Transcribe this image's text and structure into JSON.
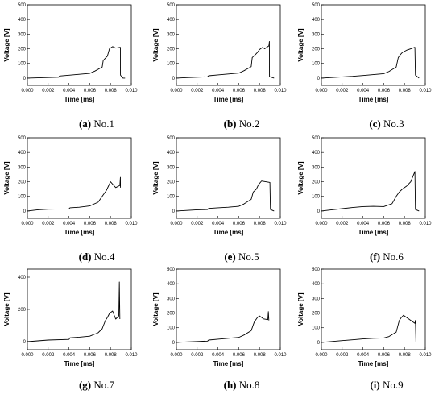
{
  "shared": {
    "xlabel": "Time [ms]",
    "ylabel": "Voltage [V]",
    "line_color": "#000000"
  },
  "chart_data": [
    {
      "type": "line",
      "caption_letter": "(a)",
      "caption_text": "No.1",
      "xlim": [
        0,
        0.01
      ],
      "ylim": [
        -50,
        500
      ],
      "xticks": [
        "0.000",
        "0.002",
        "0.004",
        "0.006",
        "0.008",
        "0.010"
      ],
      "yticks": [
        "0",
        "100",
        "200",
        "300",
        "400",
        "500"
      ],
      "x": [
        0,
        0.001,
        0.002,
        0.003,
        0.0031,
        0.004,
        0.005,
        0.006,
        0.0065,
        0.0072,
        0.0073,
        0.0075,
        0.0077,
        0.0079,
        0.0082,
        0.0085,
        0.00895,
        0.00896,
        0.0092,
        0.0094
      ],
      "y": [
        0,
        2,
        4,
        6,
        14,
        20,
        26,
        32,
        48,
        75,
        120,
        135,
        150,
        200,
        215,
        205,
        210,
        20,
        0,
        0
      ]
    },
    {
      "type": "line",
      "caption_letter": "(b)",
      "caption_text": "No.2",
      "xlim": [
        0,
        0.01
      ],
      "ylim": [
        -50,
        500
      ],
      "xticks": [
        "0.000",
        "0.002",
        "0.004",
        "0.006",
        "0.008",
        "0.010"
      ],
      "yticks": [
        "0",
        "100",
        "200",
        "300",
        "400",
        "500"
      ],
      "x": [
        0,
        0.001,
        0.002,
        0.003,
        0.0031,
        0.004,
        0.005,
        0.006,
        0.0065,
        0.0072,
        0.0073,
        0.0076,
        0.0078,
        0.008,
        0.0083,
        0.0085,
        0.0089,
        0.00895,
        0.00896,
        0.0094
      ],
      "y": [
        0,
        3,
        6,
        9,
        16,
        22,
        28,
        34,
        50,
        78,
        140,
        160,
        175,
        195,
        210,
        200,
        220,
        250,
        10,
        0
      ]
    },
    {
      "type": "line",
      "caption_letter": "(c)",
      "caption_text": "No.3",
      "xlim": [
        0,
        0.01
      ],
      "ylim": [
        -50,
        500
      ],
      "xticks": [
        "0.000",
        "0.002",
        "0.004",
        "0.006",
        "0.008",
        "0.010"
      ],
      "yticks": [
        "0",
        "100",
        "200",
        "300",
        "400",
        "500"
      ],
      "x": [
        0,
        0.001,
        0.002,
        0.003,
        0.004,
        0.005,
        0.006,
        0.0065,
        0.0072,
        0.0074,
        0.0076,
        0.0078,
        0.0082,
        0.0086,
        0.009,
        0.00905,
        0.0094
      ],
      "y": [
        0,
        4,
        8,
        12,
        18,
        24,
        30,
        45,
        75,
        140,
        160,
        175,
        190,
        200,
        210,
        20,
        0
      ]
    },
    {
      "type": "line",
      "caption_letter": "(d)",
      "caption_text": "No.4",
      "xlim": [
        0,
        0.01
      ],
      "ylim": [
        -50,
        500
      ],
      "xticks": [
        "0.000",
        "0.002",
        "0.004",
        "0.006",
        "0.008",
        "0.010"
      ],
      "yticks": [
        "0",
        "100",
        "200",
        "300",
        "400",
        "500"
      ],
      "x": [
        0,
        0.001,
        0.002,
        0.004,
        0.0041,
        0.005,
        0.006,
        0.0068,
        0.007,
        0.0073,
        0.0076,
        0.0078,
        0.008,
        0.0085,
        0.0089,
        0.00895,
        0.00896
      ],
      "y": [
        0,
        8,
        12,
        14,
        22,
        26,
        35,
        60,
        80,
        110,
        140,
        170,
        200,
        160,
        175,
        230,
        160
      ]
    },
    {
      "type": "line",
      "caption_letter": "(e)",
      "caption_text": "No.5",
      "xlim": [
        0,
        0.01
      ],
      "ylim": [
        -50,
        500
      ],
      "xticks": [
        "0.000",
        "0.002",
        "0.004",
        "0.006",
        "0.008",
        "0.010"
      ],
      "yticks": [
        "0",
        "100",
        "200",
        "300",
        "400",
        "500"
      ],
      "x": [
        0,
        0.001,
        0.002,
        0.003,
        0.0031,
        0.004,
        0.005,
        0.006,
        0.0065,
        0.0072,
        0.0074,
        0.0077,
        0.0079,
        0.0082,
        0.0086,
        0.009,
        0.00905,
        0.0094
      ],
      "y": [
        0,
        4,
        8,
        10,
        18,
        22,
        26,
        32,
        48,
        80,
        130,
        150,
        180,
        205,
        200,
        195,
        10,
        0
      ]
    },
    {
      "type": "line",
      "caption_letter": "(f)",
      "caption_text": "No.6",
      "xlim": [
        0,
        0.01
      ],
      "ylim": [
        -50,
        500
      ],
      "xticks": [
        "0.000",
        "0.002",
        "0.004",
        "0.006",
        "0.008",
        "0.010"
      ],
      "yticks": [
        "0",
        "100",
        "200",
        "300",
        "400",
        "500"
      ],
      "x": [
        0,
        0.001,
        0.002,
        0.003,
        0.004,
        0.005,
        0.006,
        0.0068,
        0.0072,
        0.0075,
        0.0078,
        0.0082,
        0.0086,
        0.009,
        0.00905,
        0.0094
      ],
      "y": [
        0,
        8,
        16,
        24,
        30,
        32,
        30,
        50,
        100,
        130,
        150,
        170,
        200,
        270,
        10,
        0
      ]
    },
    {
      "type": "line",
      "caption_letter": "(g)",
      "caption_text": "No.7",
      "xlim": [
        0,
        0.01
      ],
      "ylim": [
        -50,
        450
      ],
      "xticks": [
        "0.000",
        "0.002",
        "0.004",
        "0.006",
        "0.008",
        "0.010"
      ],
      "yticks": [
        "0",
        "200",
        "400"
      ],
      "x": [
        0,
        0.001,
        0.002,
        0.004,
        0.0041,
        0.005,
        0.006,
        0.0068,
        0.0072,
        0.0075,
        0.0077,
        0.0079,
        0.0082,
        0.0085,
        0.0088,
        0.00885,
        0.0089
      ],
      "y": [
        0,
        5,
        10,
        14,
        24,
        28,
        34,
        55,
        80,
        130,
        150,
        175,
        190,
        140,
        160,
        370,
        140
      ]
    },
    {
      "type": "line",
      "caption_letter": "(h)",
      "caption_text": "No.8",
      "xlim": [
        0,
        0.01
      ],
      "ylim": [
        -50,
        500
      ],
      "xticks": [
        "0.000",
        "0.002",
        "0.004",
        "0.006",
        "0.008",
        "0.010"
      ],
      "yticks": [
        "0",
        "100",
        "200",
        "300",
        "400",
        "500"
      ],
      "x": [
        0,
        0.001,
        0.002,
        0.003,
        0.0031,
        0.004,
        0.005,
        0.006,
        0.0065,
        0.0072,
        0.0075,
        0.0078,
        0.008,
        0.0084,
        0.0088,
        0.00885,
        0.0089
      ],
      "y": [
        0,
        3,
        6,
        9,
        16,
        22,
        28,
        34,
        50,
        80,
        140,
        170,
        180,
        160,
        155,
        210,
        150
      ]
    },
    {
      "type": "line",
      "caption_letter": "(i)",
      "caption_text": "No.9",
      "xlim": [
        0,
        0.01
      ],
      "ylim": [
        -50,
        500
      ],
      "xticks": [
        "0.000",
        "0.002",
        "0.004",
        "0.006",
        "0.008",
        "0.010"
      ],
      "yticks": [
        "0",
        "100",
        "200",
        "300",
        "400",
        "500"
      ],
      "x": [
        0,
        0.001,
        0.002,
        0.003,
        0.004,
        0.005,
        0.006,
        0.0065,
        0.0072,
        0.0075,
        0.0077,
        0.0079,
        0.0082,
        0.0086,
        0.009,
        0.00905,
        0.0091
      ],
      "y": [
        0,
        6,
        12,
        18,
        24,
        28,
        30,
        40,
        70,
        150,
        170,
        185,
        170,
        150,
        130,
        150,
        0
      ]
    }
  ]
}
